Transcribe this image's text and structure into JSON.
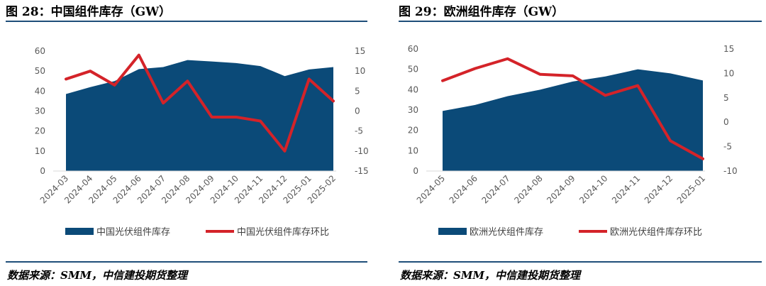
{
  "left_title": "图 28：中国组件库存（GW）",
  "right_title": "图 29：欧洲组件库存（GW）",
  "left_source": "数据来源：SMM，中信建投期货整理",
  "right_source": "数据来源：SMM，中信建投期货整理",
  "colors": {
    "area": "#0b4a78",
    "line": "#d42329",
    "rule": "#1f4e79"
  },
  "chart_data": [
    {
      "type": "area+line",
      "title": "中国组件库存（GW）",
      "categories": [
        "2024-03",
        "2024-04",
        "2024-05",
        "2024-06",
        "2024-07",
        "2024-08",
        "2024-09",
        "2024-10",
        "2024-11",
        "2024-12",
        "2025-01",
        "2025-02"
      ],
      "series": [
        {
          "name": "中国光伏组件库存",
          "type": "area",
          "axis": "left",
          "values": [
            38.5,
            42,
            45,
            51,
            52,
            55.5,
            54.8,
            54,
            52.5,
            47.5,
            50.8,
            52
          ]
        },
        {
          "name": "中国光伏组件库存环比",
          "type": "line",
          "axis": "right",
          "values": [
            8,
            10,
            6.5,
            14,
            2,
            7.5,
            -1.5,
            -1.5,
            -2.5,
            -10,
            8,
            2.5
          ]
        }
      ],
      "left_ylim": [
        0,
        60
      ],
      "left_ticks": [
        "0",
        "10",
        "20",
        "30",
        "40",
        "50",
        "60"
      ],
      "right_ylim": [
        -15,
        15
      ],
      "right_ticks": [
        "15",
        "10",
        "5",
        "0",
        "-5",
        "-10",
        "-15"
      ],
      "legend": [
        "中国光伏组件库存",
        "中国光伏组件库存环比"
      ]
    },
    {
      "type": "area+line",
      "title": "欧洲组件库存（GW）",
      "categories": [
        "2024-05",
        "2024-06",
        "2024-07",
        "2024-08",
        "2024-09",
        "2024-10",
        "2024-11",
        "2024-12",
        "2025-01"
      ],
      "series": [
        {
          "name": "欧洲光伏组件库存",
          "type": "area",
          "axis": "left",
          "values": [
            29.5,
            32.5,
            36.8,
            40,
            44,
            46.5,
            50,
            48,
            44.5
          ]
        },
        {
          "name": "欧洲光伏组件库存环比",
          "type": "line",
          "axis": "right",
          "values": [
            8.5,
            11,
            13,
            9.8,
            9.5,
            5.5,
            7.5,
            -3.8,
            -7.5
          ]
        }
      ],
      "left_ylim": [
        0,
        60
      ],
      "left_ticks": [
        "0",
        "10",
        "20",
        "30",
        "40",
        "50",
        "60"
      ],
      "right_ylim": [
        -10,
        15
      ],
      "right_ticks": [
        "15",
        "10",
        "5",
        "0",
        "-5",
        "-10"
      ],
      "legend": [
        "欧洲光伏组件库存",
        "欧洲光伏组件库存环比"
      ]
    }
  ]
}
